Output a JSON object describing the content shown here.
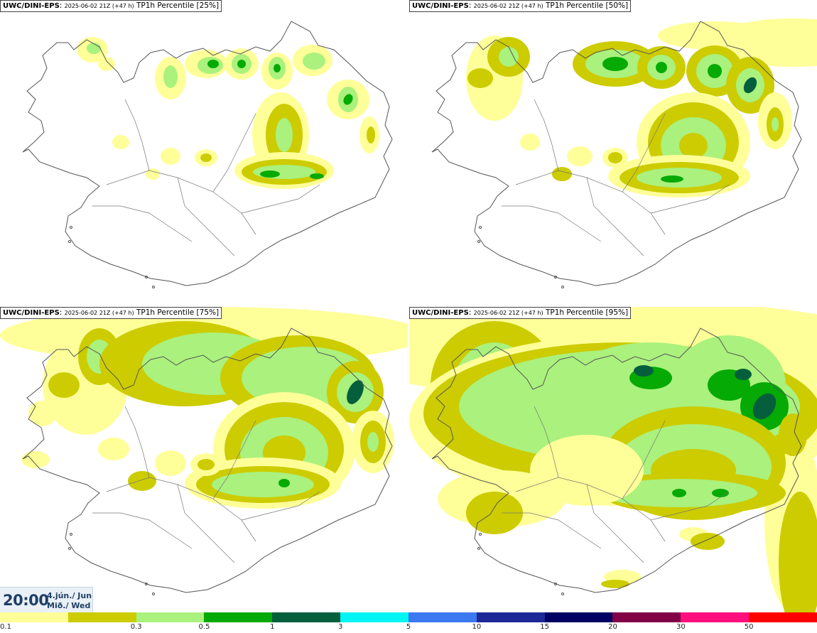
{
  "panels": [
    {
      "model": "UWC/DINI-EPS",
      "run": "2025-06-02 21Z (+47 h)",
      "field": "TP1h Percentile [25%]",
      "percentile": 25
    },
    {
      "model": "UWC/DINI-EPS",
      "run": "2025-06-02 21Z (+47 h)",
      "field": "TP1h Percentile [50%]",
      "percentile": 50
    },
    {
      "model": "UWC/DINI-EPS",
      "run": "2025-06-02 21Z (+47 h)",
      "field": "TP1h Percentile [75%]",
      "percentile": 75
    },
    {
      "model": "UWC/DINI-EPS",
      "run": "2025-06-02 21Z (+47 h)",
      "field": "TP1h Percentile [95%]",
      "percentile": 95
    }
  ],
  "valid_time": {
    "time": "20:00",
    "date": "4.jún./ Jun",
    "weekday": "Mið./ Wed"
  },
  "legend": {
    "colors": [
      "#ffff99",
      "#cccc00",
      "#aaf17d",
      "#05aa05",
      "#055f3c",
      "#00f5f5",
      "#3c78f0",
      "#1e2896",
      "#000064",
      "#820046",
      "#ff0f7d",
      "#ff0000"
    ],
    "ticks": [
      "0.1",
      "0.3",
      "0.5",
      "1",
      "3",
      "5",
      "10",
      "15",
      "20",
      "30",
      "50"
    ]
  }
}
